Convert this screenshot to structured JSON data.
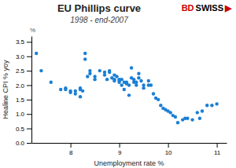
{
  "chart_data": {
    "type": "scatter",
    "title": "EU Phillips curve",
    "subtitle": "1998 - end-2007",
    "x_label": "Unemployment rate %",
    "y_label": "Healine CPI % yoy",
    "annotations": [
      {
        "text": "%"
      },
      {
        "text": "BD",
        "color": "#cc0000"
      },
      {
        "text": "SWISS",
        "color": "#000000"
      },
      {
        "text": "▶",
        "color": "#cc0000"
      }
    ],
    "color": "#1a7fd4",
    "grid": false,
    "xlim": [
      7.2,
      11.2
    ],
    "ylim": [
      0.0,
      3.7
    ],
    "xticks": [
      8,
      9,
      10,
      11
    ],
    "yticks": [
      {
        "value": 0.0,
        "label": "0.0"
      },
      0.5,
      {
        "value": 1.0,
        "label": "1.0"
      },
      1.5,
      {
        "value": 2.0,
        "label": "2.0"
      },
      2.5,
      {
        "value": 3.0,
        "label": "3.0"
      },
      3.5
    ],
    "x": [
      7.3,
      7.4,
      7.6,
      7.8,
      7.9,
      7.9,
      8.0,
      8.0,
      8.1,
      8.1,
      8.2,
      8.2,
      8.2,
      8.25,
      8.3,
      8.3,
      8.35,
      8.4,
      8.4,
      8.5,
      8.5,
      8.6,
      8.7,
      8.7,
      8.75,
      8.8,
      8.8,
      8.85,
      8.9,
      8.9,
      8.9,
      8.95,
      9.0,
      9.0,
      9.0,
      9.05,
      9.05,
      9.1,
      9.1,
      9.15,
      9.15,
      9.2,
      9.2,
      9.25,
      9.25,
      9.3,
      9.3,
      9.35,
      9.35,
      9.4,
      9.4,
      9.45,
      9.5,
      9.5,
      9.6,
      9.6,
      9.65,
      9.7,
      9.75,
      9.8,
      9.85,
      9.9,
      9.95,
      10.0,
      10.05,
      10.1,
      10.15,
      10.2,
      10.3,
      10.35,
      10.4,
      10.5,
      10.6,
      10.65,
      10.7,
      10.8,
      10.9,
      11.0
    ],
    "values": [
      3.1,
      2.5,
      2.1,
      1.85,
      1.9,
      1.85,
      1.8,
      1.75,
      1.7,
      1.8,
      1.9,
      1.85,
      1.6,
      1.8,
      3.1,
      2.9,
      2.3,
      2.4,
      2.5,
      2.3,
      2.2,
      2.5,
      2.45,
      2.35,
      2.2,
      2.45,
      2.5,
      2.25,
      2.2,
      2.15,
      2.35,
      2.3,
      2.2,
      2.15,
      2.1,
      2.0,
      2.2,
      2.1,
      1.85,
      2.1,
      2.05,
      2.0,
      1.65,
      2.25,
      2.6,
      2.1,
      2.2,
      2.0,
      2.1,
      2.4,
      2.25,
      2.15,
      2.0,
      1.9,
      2.0,
      2.15,
      2.0,
      1.7,
      1.55,
      1.5,
      1.3,
      1.2,
      1.15,
      1.1,
      1.05,
      0.95,
      0.9,
      0.7,
      0.8,
      0.85,
      0.85,
      0.8,
      1.05,
      0.85,
      1.1,
      1.3,
      1.3,
      1.35
    ]
  }
}
